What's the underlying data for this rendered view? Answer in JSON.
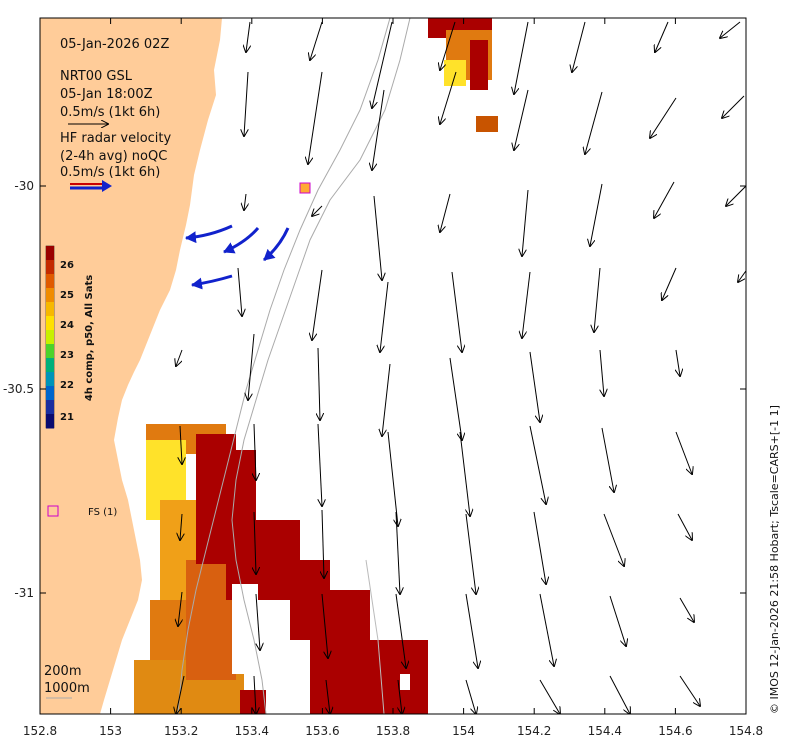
{
  "header": {
    "date_line": "05-Jan-2026 02Z",
    "model_line": "NRT00 GSL",
    "model_time": "05-Jan 18:00Z",
    "model_scale": "0.5m/s (1kt 6h)",
    "hf_line1": "HF radar velocity",
    "hf_line2": "(2-4h avg) noQC",
    "hf_scale": "0.5m/s (1kt 6h)"
  },
  "colorbar": {
    "title": "4h comp, p50, All Sats",
    "ticks": [
      "26",
      "25",
      "24",
      "23",
      "22",
      "21"
    ]
  },
  "station": {
    "label": "FS (1)"
  },
  "isobaths": {
    "label1": "200m",
    "label2": "1000m"
  },
  "credit": "© IMOS 12-Jan-2026 21:58 Hobart; Tscale=CARS+[-1 1]",
  "x_axis": {
    "ticks": [
      "152.8",
      "153",
      "153.2",
      "153.4",
      "153.6",
      "153.8",
      "154",
      "154.2",
      "154.4",
      "154.6",
      "154.8"
    ]
  },
  "y_axis": {
    "ticks": [
      "-30",
      "-30.5",
      "-31"
    ]
  },
  "colors": {
    "land": "#ffcc99",
    "hf_arrow": "#1122cc",
    "model_arrow": "#000000",
    "isobath": "#aaaaaa",
    "sst_hot": "#aa0000",
    "sst_warm": "#e07a10",
    "sst_yellow": "#ffe22a"
  }
}
